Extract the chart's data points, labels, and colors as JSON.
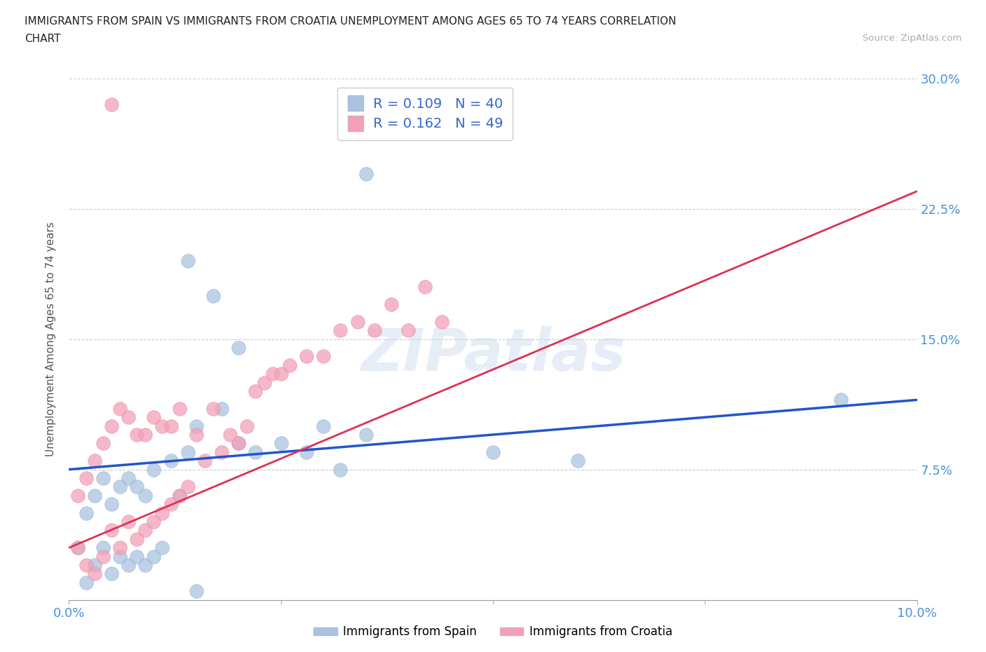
{
  "title_line1": "IMMIGRANTS FROM SPAIN VS IMMIGRANTS FROM CROATIA UNEMPLOYMENT AMONG AGES 65 TO 74 YEARS CORRELATION",
  "title_line2": "CHART",
  "source": "Source: ZipAtlas.com",
  "ylabel": "Unemployment Among Ages 65 to 74 years",
  "spain_color": "#aac4e0",
  "croatia_color": "#f2a0b8",
  "spain_line_color": "#2255cc",
  "croatia_line_color": "#dd3355",
  "spain_R": 0.109,
  "spain_N": 40,
  "croatia_R": 0.162,
  "croatia_N": 49,
  "xlim": [
    0.0,
    0.1
  ],
  "ylim": [
    0.0,
    0.3
  ],
  "watermark": "ZIPatlas",
  "spain_x": [
    0.001,
    0.002,
    0.002,
    0.003,
    0.003,
    0.004,
    0.004,
    0.005,
    0.005,
    0.006,
    0.006,
    0.007,
    0.007,
    0.008,
    0.008,
    0.009,
    0.009,
    0.01,
    0.01,
    0.011,
    0.012,
    0.013,
    0.014,
    0.015,
    0.018,
    0.02,
    0.022,
    0.025,
    0.028,
    0.032,
    0.014,
    0.017,
    0.02,
    0.03,
    0.035,
    0.05,
    0.06,
    0.091,
    0.035,
    0.015
  ],
  "spain_y": [
    0.03,
    0.01,
    0.05,
    0.02,
    0.06,
    0.03,
    0.07,
    0.015,
    0.055,
    0.025,
    0.065,
    0.02,
    0.07,
    0.025,
    0.065,
    0.02,
    0.06,
    0.025,
    0.075,
    0.03,
    0.08,
    0.06,
    0.085,
    0.1,
    0.11,
    0.09,
    0.085,
    0.09,
    0.085,
    0.075,
    0.195,
    0.175,
    0.145,
    0.1,
    0.095,
    0.085,
    0.08,
    0.115,
    0.245,
    0.005
  ],
  "croatia_x": [
    0.001,
    0.001,
    0.002,
    0.002,
    0.003,
    0.003,
    0.004,
    0.004,
    0.005,
    0.005,
    0.006,
    0.006,
    0.007,
    0.007,
    0.008,
    0.008,
    0.009,
    0.009,
    0.01,
    0.01,
    0.011,
    0.011,
    0.012,
    0.012,
    0.013,
    0.013,
    0.014,
    0.015,
    0.016,
    0.017,
    0.018,
    0.019,
    0.02,
    0.021,
    0.022,
    0.023,
    0.024,
    0.025,
    0.026,
    0.028,
    0.03,
    0.032,
    0.034,
    0.036,
    0.038,
    0.04,
    0.042,
    0.044,
    0.005
  ],
  "croatia_y": [
    0.03,
    0.06,
    0.02,
    0.07,
    0.015,
    0.08,
    0.025,
    0.09,
    0.04,
    0.1,
    0.03,
    0.11,
    0.045,
    0.105,
    0.035,
    0.095,
    0.04,
    0.095,
    0.045,
    0.105,
    0.05,
    0.1,
    0.055,
    0.1,
    0.06,
    0.11,
    0.065,
    0.095,
    0.08,
    0.11,
    0.085,
    0.095,
    0.09,
    0.1,
    0.12,
    0.125,
    0.13,
    0.13,
    0.135,
    0.14,
    0.14,
    0.155,
    0.16,
    0.155,
    0.17,
    0.155,
    0.18,
    0.16,
    0.285
  ],
  "spain_trend_x": [
    0.0,
    0.1
  ],
  "spain_trend_y": [
    0.075,
    0.115
  ],
  "croatia_trend_x": [
    0.0,
    0.1
  ],
  "croatia_trend_y": [
    0.03,
    0.235
  ]
}
